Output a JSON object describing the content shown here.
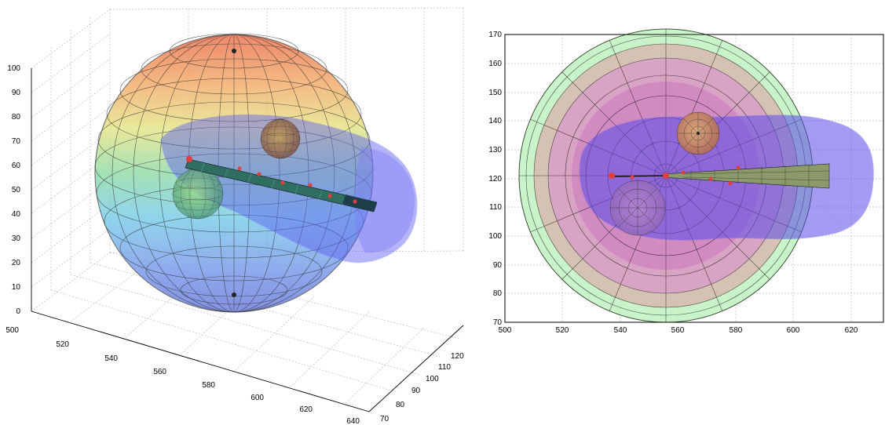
{
  "left_plot": {
    "z_ticks": [
      "0",
      "10",
      "20",
      "30",
      "40",
      "50",
      "60",
      "70",
      "80",
      "90",
      "100"
    ],
    "x_ticks": [
      "500",
      "520",
      "540",
      "560",
      "580",
      "600",
      "620",
      "640"
    ],
    "y_ticks": [
      "70",
      "80",
      "90",
      "100",
      "110",
      "120"
    ]
  },
  "right_plot": {
    "y_ticks": [
      "70",
      "80",
      "90",
      "100",
      "110",
      "120",
      "130",
      "140",
      "150",
      "160",
      "170"
    ],
    "x_ticks": [
      "500",
      "520",
      "540",
      "560",
      "580",
      "600",
      "620"
    ]
  }
}
